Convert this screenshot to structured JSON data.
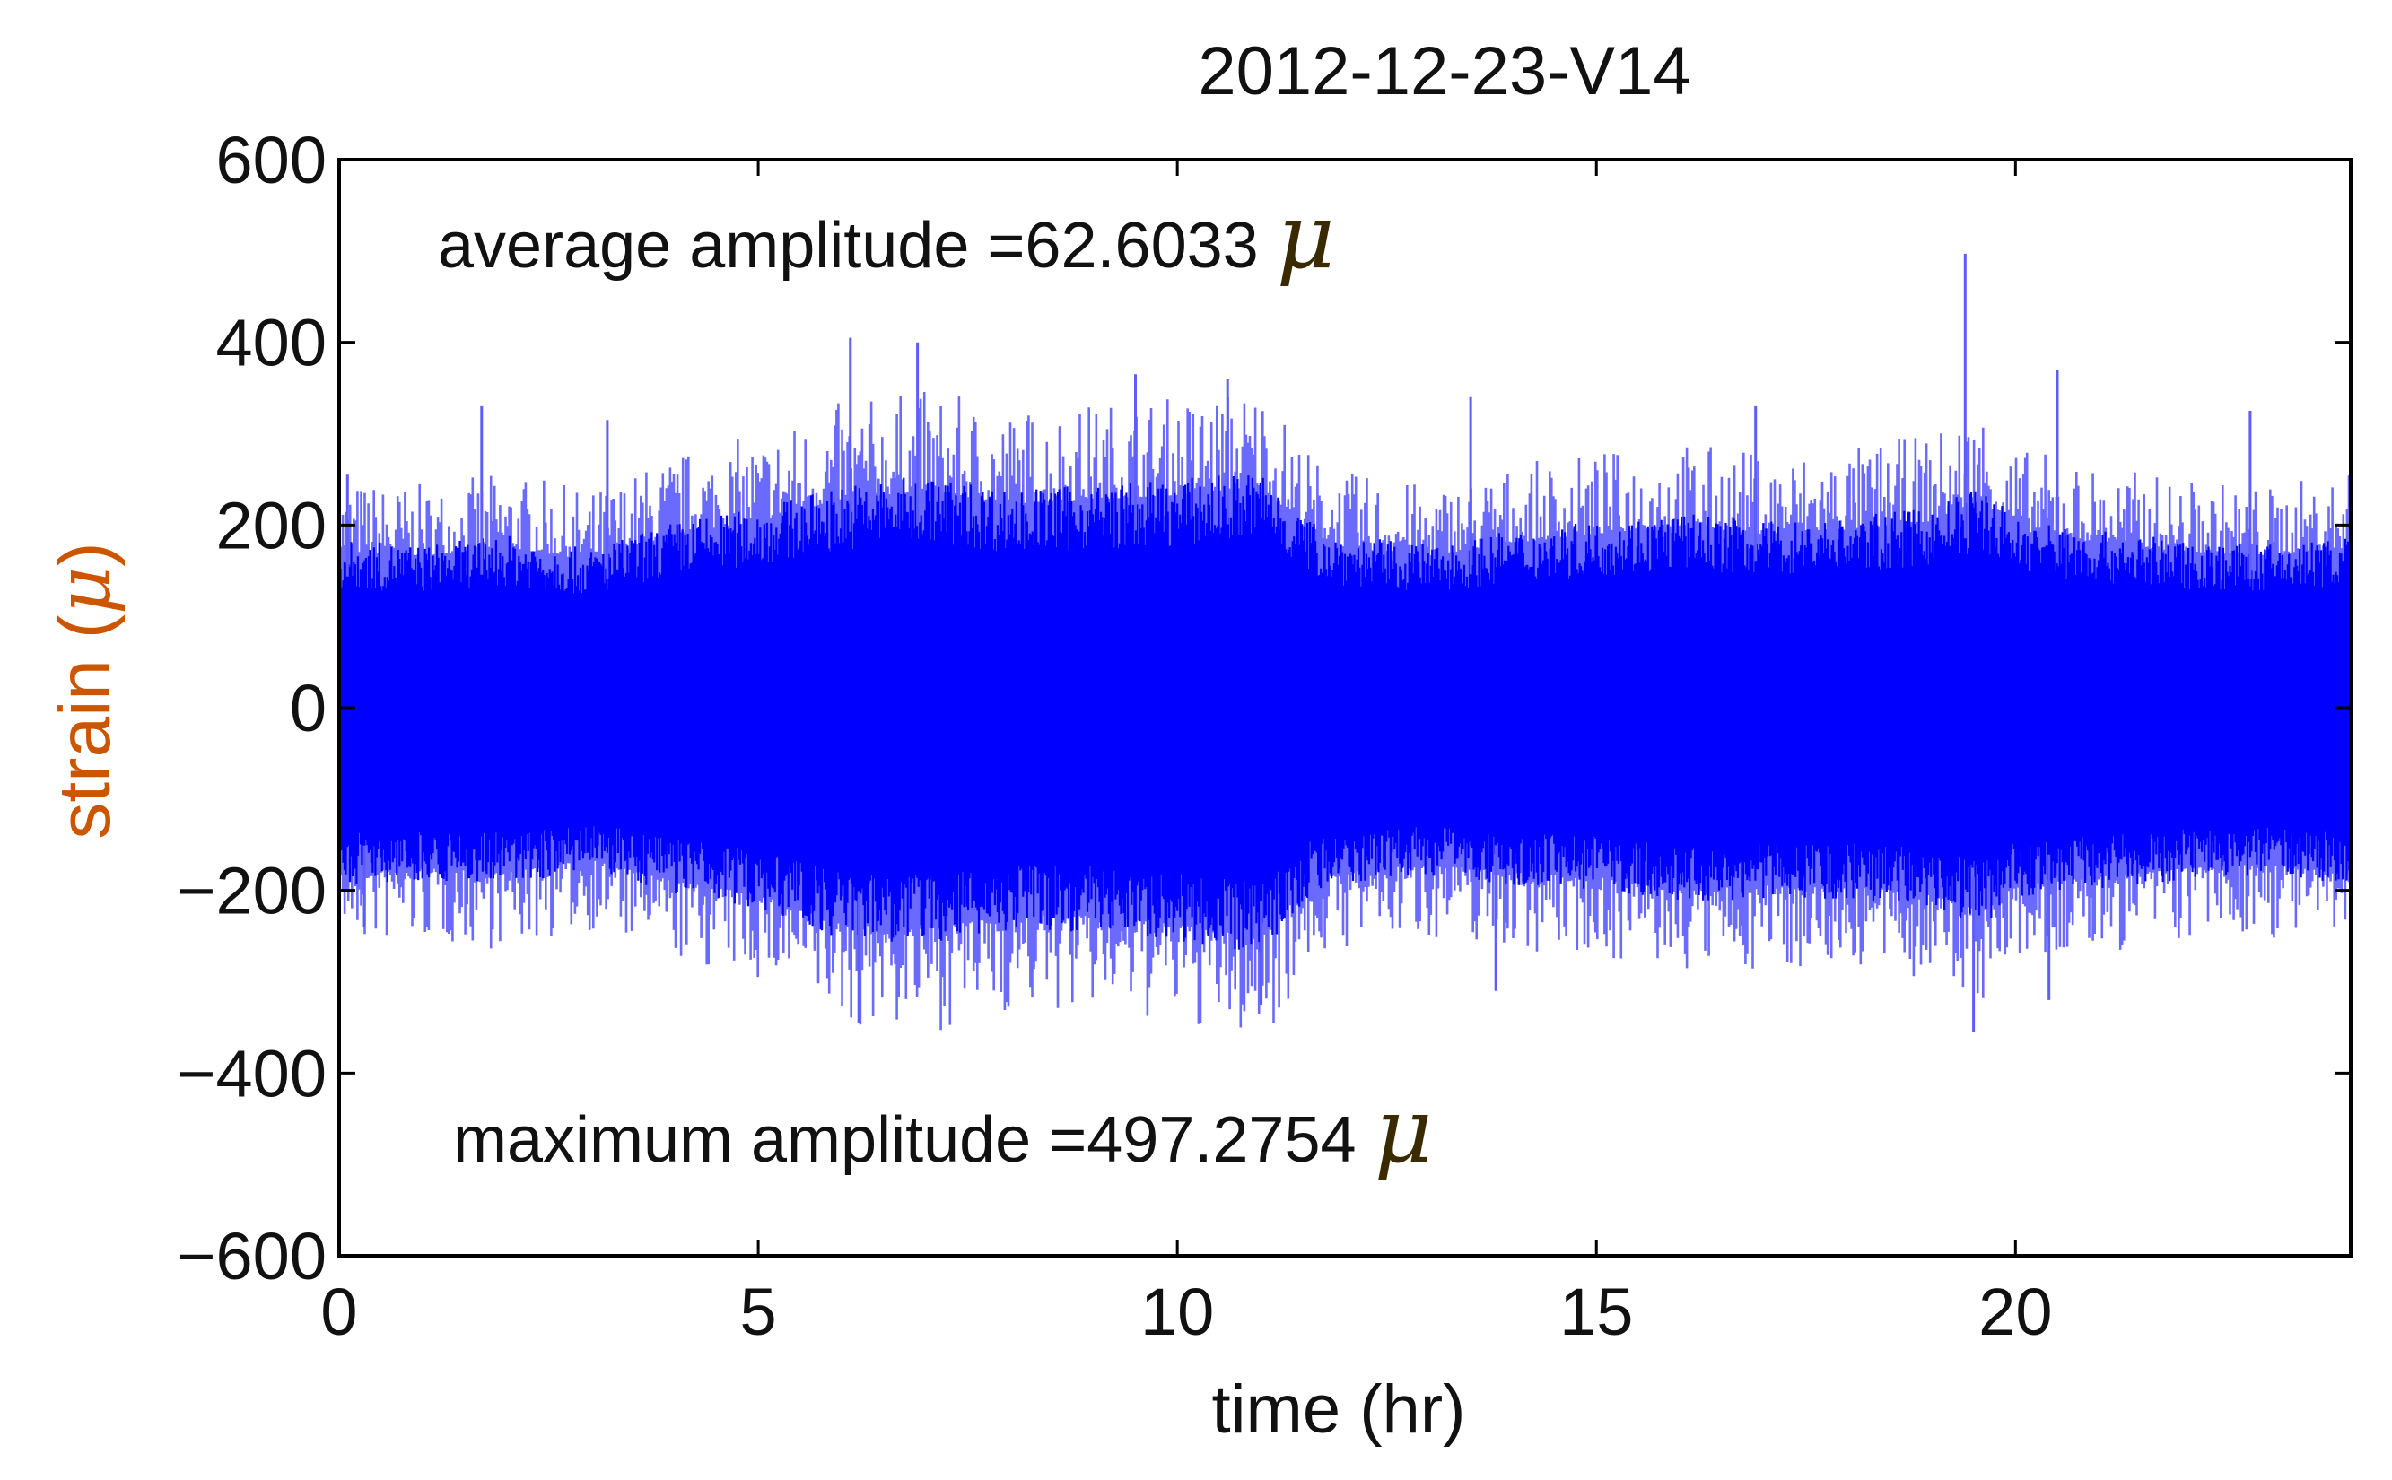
{
  "chart_data": {
    "type": "line",
    "title": "2012-12-23-V14",
    "xlabel": "time (hr)",
    "ylabel_prefix": "strain (",
    "ylabel_mu": "μ",
    "ylabel_suffix": ")",
    "xlim": [
      0,
      24
    ],
    "ylim": [
      -600,
      600
    ],
    "x_ticks": [
      0,
      5,
      10,
      15,
      20
    ],
    "x_tick_labels": [
      "0",
      "5",
      "10",
      "15",
      "20"
    ],
    "y_ticks": [
      600,
      400,
      200,
      0,
      -200,
      -400,
      -600
    ],
    "y_tick_labels": [
      "600",
      "400",
      "200",
      "0",
      "−200",
      "−400",
      "−600"
    ],
    "series": [
      {
        "name": "strain",
        "color": "#0000ff",
        "envelope_hours": [
          0,
          1,
          2,
          3,
          4,
          5,
          6,
          7,
          8,
          9,
          10,
          11,
          11.6,
          12,
          13,
          14,
          15,
          16,
          17,
          18,
          19,
          19.6,
          20,
          21,
          22,
          23,
          24
        ],
        "upper_core": [
          180,
          175,
          185,
          170,
          200,
          215,
          240,
          250,
          235,
          240,
          245,
          255,
          200,
          185,
          175,
          190,
          200,
          210,
          200,
          205,
          215,
          240,
          205,
          190,
          180,
          175,
          185
        ],
        "lower_core": [
          -190,
          -185,
          -190,
          -175,
          -200,
          -215,
          -250,
          -255,
          -240,
          -240,
          -250,
          -265,
          -200,
          -190,
          -180,
          -190,
          -195,
          -210,
          -205,
          -205,
          -215,
          -235,
          -205,
          -195,
          -185,
          -180,
          -190
        ],
        "peaks": [
          {
            "x": 0.1,
            "y": 255
          },
          {
            "x": 1.7,
            "y": 330
          },
          {
            "x": 3.2,
            "y": 315
          },
          {
            "x": 6.1,
            "y": 405
          },
          {
            "x": 6.9,
            "y": 400
          },
          {
            "x": 9.5,
            "y": 365
          },
          {
            "x": 10.6,
            "y": 360
          },
          {
            "x": 13.5,
            "y": 340
          },
          {
            "x": 16.9,
            "y": 330
          },
          {
            "x": 19.4,
            "y": 497
          },
          {
            "x": 20.5,
            "y": 370
          },
          {
            "x": 22.8,
            "y": 325
          },
          {
            "x": 6.2,
            "y": -345
          },
          {
            "x": 11.0,
            "y": -325
          },
          {
            "x": 13.8,
            "y": -310
          },
          {
            "x": 19.5,
            "y": -355
          },
          {
            "x": 20.4,
            "y": -320
          },
          {
            "x": 0.3,
            "y": -240
          }
        ]
      }
    ],
    "annotations": {
      "average_label": "average amplitude =62.6033 ",
      "maximum_label": "maximum amplitude =497.2754 ",
      "unit": "μ"
    },
    "average_amplitude": 62.6033,
    "maximum_amplitude": 497.2754
  },
  "colors": {
    "trace": "#0000ff",
    "ylabel": "#cc5500",
    "mu_annotation": "#3a2a00"
  }
}
